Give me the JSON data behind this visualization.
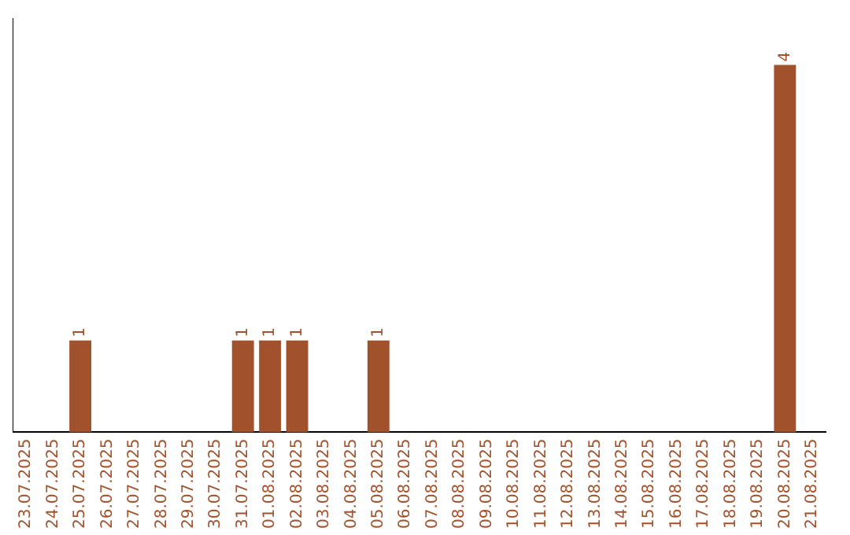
{
  "chart_data": {
    "type": "bar",
    "categories": [
      "23.07.2025",
      "24.07.2025",
      "25.07.2025",
      "26.07.2025",
      "27.07.2025",
      "28.07.2025",
      "29.07.2025",
      "30.07.2025",
      "31.07.2025",
      "01.08.2025",
      "02.08.2025",
      "03.08.2025",
      "04.08.2025",
      "05.08.2025",
      "06.08.2025",
      "07.08.2025",
      "08.08.2025",
      "09.08.2025",
      "10.08.2025",
      "11.08.2025",
      "12.08.2025",
      "13.08.2025",
      "14.08.2025",
      "15.08.2025",
      "16.08.2025",
      "17.08.2025",
      "18.08.2025",
      "19.08.2025",
      "20.08.2025",
      "21.08.2025"
    ],
    "values": [
      0,
      0,
      1,
      0,
      0,
      0,
      0,
      0,
      1,
      1,
      1,
      0,
      0,
      1,
      0,
      0,
      0,
      0,
      0,
      0,
      0,
      0,
      0,
      0,
      0,
      0,
      0,
      0,
      4,
      0
    ],
    "value_labels": [
      null,
      null,
      "1",
      null,
      null,
      null,
      null,
      null,
      "1",
      "1",
      "1",
      null,
      null,
      "1",
      null,
      null,
      null,
      null,
      null,
      null,
      null,
      null,
      null,
      null,
      null,
      null,
      null,
      null,
      "4",
      null
    ],
    "color": "#a0522d",
    "grid": false,
    "legend": false,
    "tick_labels": "x"
  }
}
